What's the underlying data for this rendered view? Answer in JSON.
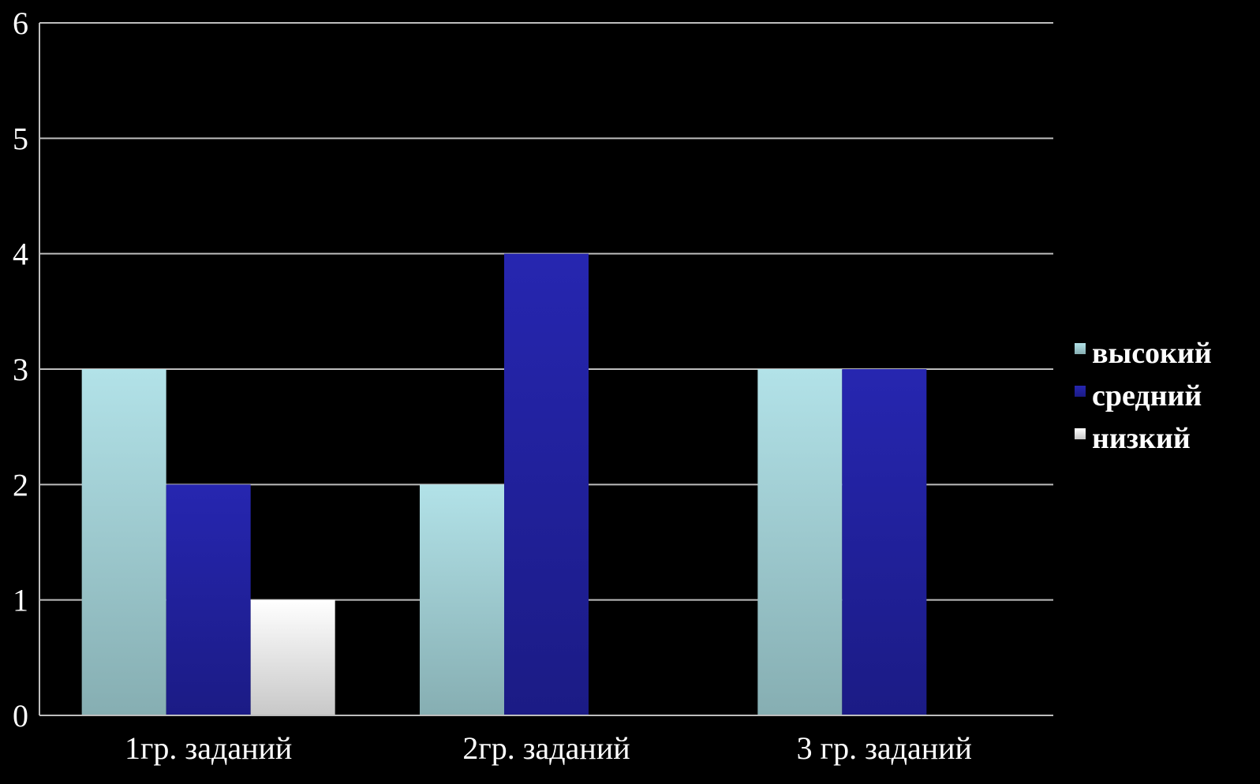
{
  "chart_data": {
    "type": "bar",
    "title": "",
    "xlabel": "",
    "ylabel": "",
    "categories": [
      "1гр. заданий",
      "2гр. заданий",
      "3 гр. заданий"
    ],
    "series": [
      {
        "name": "высокий",
        "values": [
          3,
          2,
          3
        ],
        "color": "#a8d8de"
      },
      {
        "name": "средний",
        "values": [
          2,
          4,
          3
        ],
        "color": "#2323a8"
      },
      {
        "name": "низкий",
        "values": [
          1,
          0,
          0
        ],
        "color": "#f4f4f4"
      }
    ],
    "ylim": [
      0,
      6
    ],
    "yticks": [
      "0",
      "1",
      "2",
      "3",
      "4",
      "5",
      "6"
    ],
    "grid": true,
    "legend_position": "right",
    "background": "#000000"
  }
}
